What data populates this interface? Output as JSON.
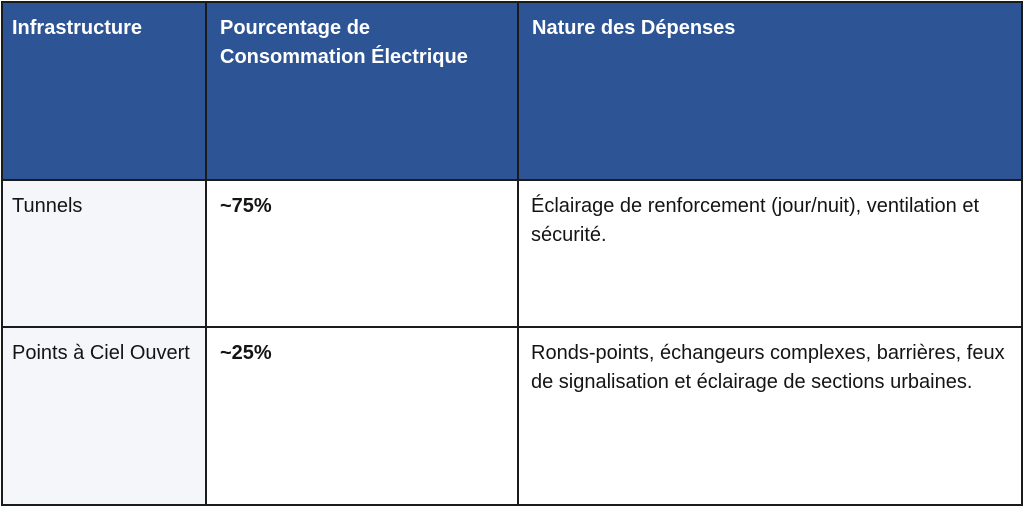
{
  "table": {
    "headers": [
      "Infrastructure",
      "Pourcentage de Consommation Électrique",
      "Nature des Dépenses"
    ],
    "rows": [
      {
        "infrastructure": "Tunnels",
        "percentage": "~75%",
        "nature": "Éclairage de renforcement (jour/nuit), ventilation et sécurité."
      },
      {
        "infrastructure": "Points à Ciel Ouvert",
        "percentage": "~25%",
        "nature": "Ronds-points, échangeurs complexes, barrières, feux de signalisation et éclairage de sections urbaines."
      }
    ],
    "colors": {
      "header_bg": "#2d5596",
      "header_text": "#ffffff",
      "first_column_bg": "#f5f6fa",
      "body_cell_bg": "#ffffff",
      "body_text": "#141414",
      "border": "#1b1b1b"
    }
  }
}
